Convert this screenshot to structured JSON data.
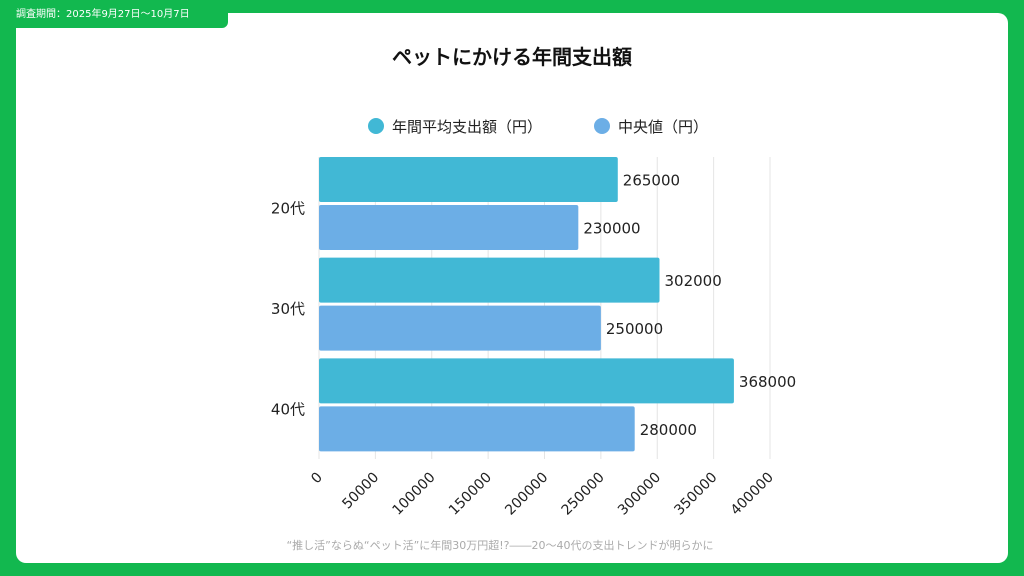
{
  "period_label": "調査期間：2025年9月27日〜10月7日",
  "chart_data": {
    "type": "bar",
    "orientation": "horizontal",
    "title": "ペットにかける年間支出額",
    "categories": [
      "20代",
      "30代",
      "40代"
    ],
    "series": [
      {
        "name": "年間平均支出額（円）",
        "color": "#41b8d5",
        "values": [
          265000,
          302000,
          368000
        ]
      },
      {
        "name": "中央値（円）",
        "color": "#6caee6",
        "values": [
          230000,
          250000,
          280000
        ]
      }
    ],
    "xlim": [
      0,
      400000
    ],
    "xticks": [
      "0",
      "50000",
      "100000",
      "150000",
      "200000",
      "250000",
      "300000",
      "350000",
      "400000"
    ],
    "grid": true,
    "legend": "top",
    "caption": "“推し活”ならぬ“ペット活”に年間30万円超!?――20〜40代の支出トレンドが明らかに"
  }
}
